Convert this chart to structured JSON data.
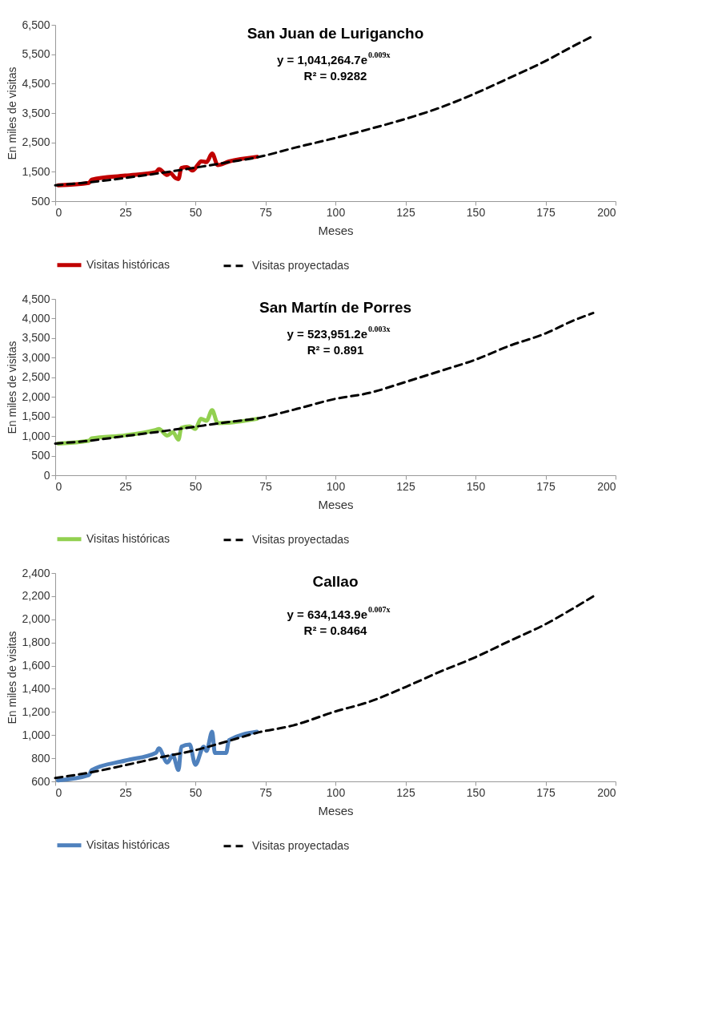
{
  "chart_data": [
    {
      "type": "line",
      "title": "San Juan de Lurigancho",
      "xlabel": "Meses",
      "ylabel": "En miles de visitas",
      "xlim": [
        0,
        200
      ],
      "xticks": [
        0,
        25,
        50,
        75,
        100,
        125,
        150,
        175,
        200
      ],
      "ylim": [
        500,
        6500
      ],
      "yticks": [
        500,
        {
          "value": 1500,
          "label": "1,500"
        },
        {
          "value": 2500,
          "label": "2,500"
        },
        {
          "value": 3500,
          "label": "3,500"
        },
        {
          "value": 4500,
          "label": "4,500"
        },
        {
          "value": 5500,
          "label": "5,500"
        },
        {
          "value": 6500,
          "label": "6,500"
        }
      ],
      "grid": false,
      "legend": "bottom",
      "annotations": [
        "y = 1,041,264.7e$^{0.009x}$",
        "R² = 0.9282"
      ],
      "series": [
        {
          "name": "Visitas históricas",
          "color": "#c00000",
          "line_style": "solid",
          "x": [
            1,
            12,
            13,
            25,
            36,
            37,
            40,
            41,
            43,
            44,
            45,
            47,
            49,
            51,
            52,
            54,
            56,
            58,
            62,
            72
          ],
          "values": [
            1040,
            1120,
            1230,
            1370,
            1490,
            1590,
            1390,
            1460,
            1280,
            1250,
            1630,
            1660,
            1540,
            1750,
            1860,
            1830,
            2120,
            1730,
            1850,
            2010
          ]
        },
        {
          "name": "Visitas proyectadas",
          "color": "#000000",
          "line_style": "dashed",
          "x": [
            0,
            12,
            25,
            37,
            50,
            62,
            72,
            86,
            100,
            112,
            125,
            137,
            150,
            162,
            175,
            185,
            192
          ],
          "values": [
            1040,
            1140,
            1290,
            1450,
            1640,
            1830,
            1990,
            2330,
            2650,
            2950,
            3300,
            3670,
            4170,
            4690,
            5270,
            5780,
            6120
          ]
        }
      ]
    },
    {
      "type": "line",
      "title": "San Martín de Porres",
      "xlabel": "Meses",
      "ylabel": "En miles de visitas",
      "xlim": [
        0,
        200
      ],
      "xticks": [
        0,
        25,
        50,
        75,
        100,
        125,
        150,
        175,
        200
      ],
      "ylim": [
        0,
        4500
      ],
      "yticks": [
        0,
        500,
        {
          "value": 1000,
          "label": "1,000"
        },
        {
          "value": 1500,
          "label": "1,500"
        },
        {
          "value": 2000,
          "label": "2,000"
        },
        {
          "value": 2500,
          "label": "2,500"
        },
        {
          "value": 3000,
          "label": "3,000"
        },
        {
          "value": 3500,
          "label": "3,500"
        },
        {
          "value": 4000,
          "label": "4,000"
        },
        {
          "value": 4500,
          "label": "4,500"
        }
      ],
      "grid": false,
      "legend": "bottom",
      "annotations": [
        "y = 523,951.2e$^{0.003x}$",
        "R² = 0.891"
      ],
      "series": [
        {
          "name": "Visitas históricas",
          "color": "#92d050",
          "line_style": "solid",
          "x": [
            1,
            12,
            13,
            25,
            36,
            37,
            40,
            42,
            44,
            45,
            48,
            50,
            52,
            54,
            56,
            58,
            62,
            72
          ],
          "values": [
            810,
            880,
            940,
            1020,
            1160,
            1180,
            1010,
            1100,
            910,
            1210,
            1250,
            1180,
            1440,
            1390,
            1660,
            1330,
            1340,
            1440
          ]
        },
        {
          "name": "Visitas proyectadas",
          "color": "#000000",
          "line_style": "dashed",
          "x": [
            0,
            12,
            25,
            37,
            50,
            62,
            72,
            85,
            100,
            112,
            125,
            137,
            150,
            162,
            175,
            185,
            192
          ],
          "values": [
            810,
            880,
            1000,
            1110,
            1240,
            1360,
            1450,
            1670,
            1950,
            2100,
            2380,
            2650,
            2950,
            3300,
            3620,
            3950,
            4140
          ]
        }
      ]
    },
    {
      "type": "line",
      "title": "Callao",
      "xlabel": "Meses",
      "ylabel": "En miles de visitas",
      "xlim": [
        0,
        200
      ],
      "xticks": [
        0,
        25,
        50,
        75,
        100,
        125,
        150,
        175,
        200
      ],
      "ylim": [
        600,
        2400
      ],
      "yticks": [
        600,
        800,
        {
          "value": 1000,
          "label": "1,000"
        },
        {
          "value": 1200,
          "label": "1,200"
        },
        {
          "value": 1400,
          "label": "1,400"
        },
        {
          "value": 1600,
          "label": "1,600"
        },
        {
          "value": 1800,
          "label": "1,800"
        },
        {
          "value": 2000,
          "label": "2,000"
        },
        {
          "value": 2200,
          "label": "2,200"
        },
        {
          "value": 2400,
          "label": "2,400"
        }
      ],
      "grid": false,
      "legend": "bottom",
      "annotations": [
        "y = 634,143.9e$^{0.007x}$",
        "R² = 0.8464"
      ],
      "series": [
        {
          "name": "Visitas históricas",
          "color": "#4f81bd",
          "line_style": "solid",
          "x": [
            1,
            12,
            13,
            25,
            36,
            37,
            40,
            42,
            44,
            45,
            48,
            50,
            53,
            54,
            56,
            57,
            61,
            62,
            72
          ],
          "values": [
            609,
            655,
            698,
            780,
            848,
            885,
            762,
            826,
            698,
            900,
            918,
            744,
            900,
            863,
            1029,
            845,
            845,
            955,
            1029
          ]
        },
        {
          "name": "Visitas proyectadas",
          "color": "#000000",
          "line_style": "dashed",
          "x": [
            0,
            12,
            25,
            37,
            50,
            62,
            72,
            85,
            100,
            112,
            125,
            137,
            150,
            162,
            175,
            185,
            192
          ],
          "values": [
            630,
            675,
            740,
            805,
            870,
            950,
            1020,
            1084,
            1204,
            1287,
            1415,
            1544,
            1673,
            1811,
            1958,
            2096,
            2198
          ]
        }
      ]
    }
  ]
}
